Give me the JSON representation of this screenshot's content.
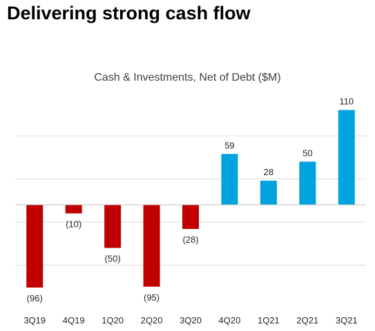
{
  "page": {
    "title": "Delivering strong cash flow"
  },
  "chart_data": {
    "type": "bar",
    "title": "Cash & Investments, Net of Debt ($M)",
    "xlabel": "",
    "ylabel": "",
    "categories": [
      "3Q19",
      "4Q19",
      "1Q20",
      "2Q20",
      "3Q20",
      "4Q20",
      "1Q21",
      "2Q21",
      "3Q21"
    ],
    "values": [
      -96,
      -10,
      -50,
      -95,
      -28,
      59,
      28,
      50,
      110
    ],
    "data_labels": [
      "(96)",
      "(10)",
      "(50)",
      "(95)",
      "(28)",
      "59",
      "28",
      "50",
      "110"
    ],
    "ylim": [
      -120,
      120
    ],
    "gridlines": [
      -70,
      -20,
      0,
      30,
      80
    ],
    "grid": true,
    "legend": "none",
    "colors": {
      "negative": "#c00000",
      "positive": "#00a3e0",
      "gridline": "#d9d9d9",
      "axis": "#bfbfbf",
      "label": "#262626"
    }
  }
}
